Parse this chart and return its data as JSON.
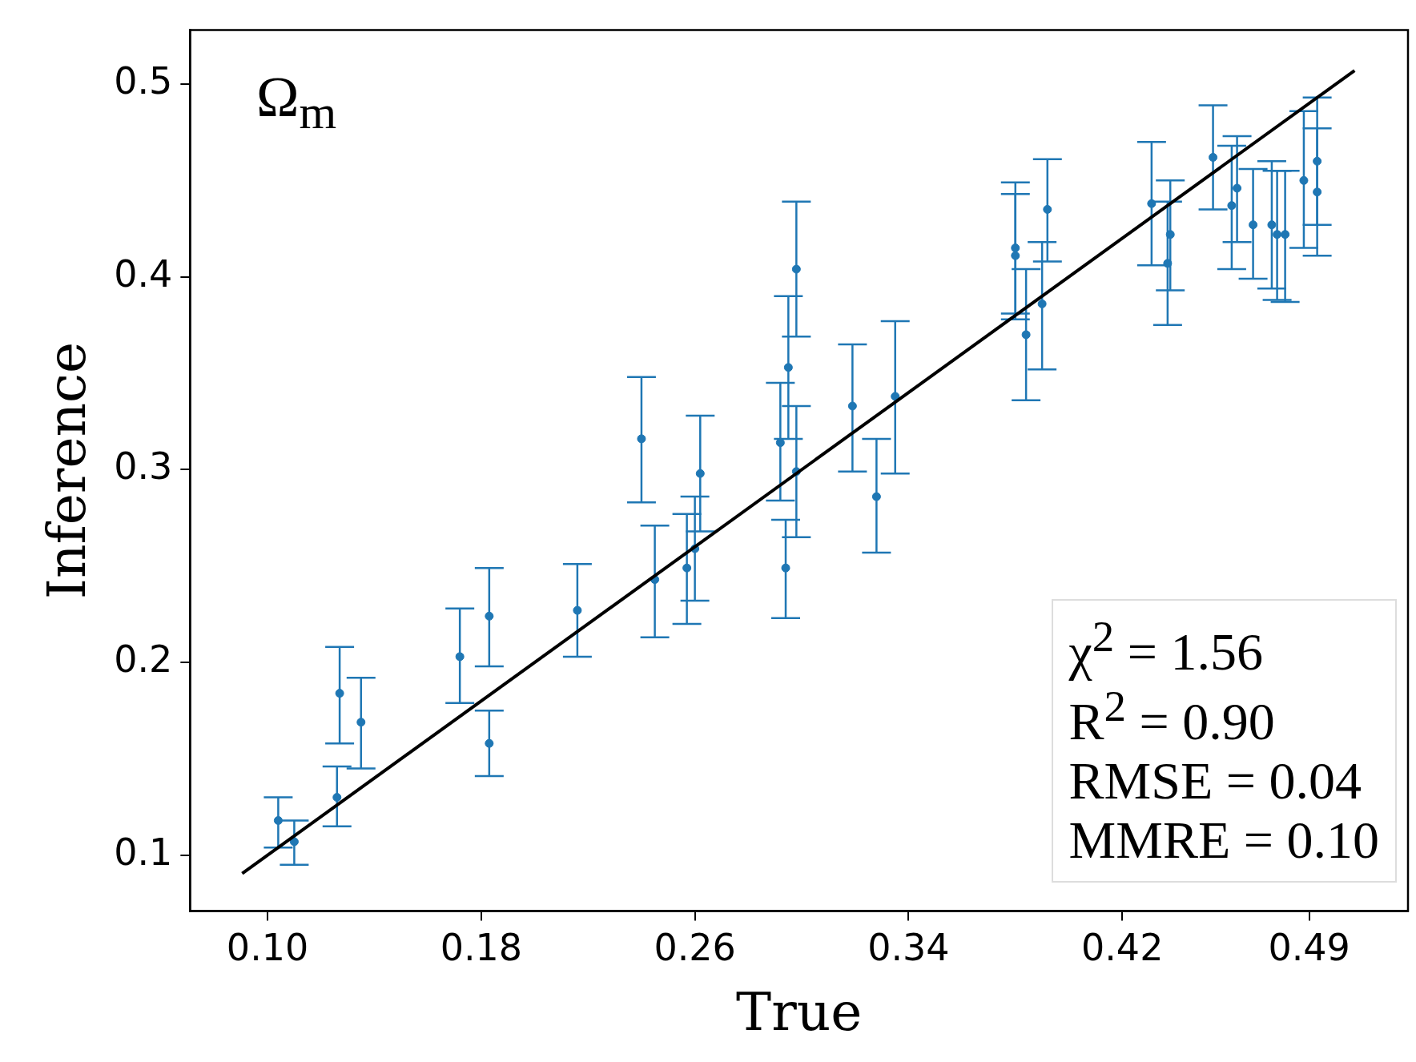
{
  "chart_data": {
    "type": "scatter",
    "xlabel": "True",
    "ylabel": "Inference",
    "annotations": [
      "Ω$_{m}$",
      "χ$^{2}$ = 1.56",
      "R$^{2}$ = 0.90",
      "RMSE = 0.04",
      "MMRE = 0.10"
    ],
    "xlim": [
      0.071,
      0.527
    ],
    "ylim": [
      0.071,
      0.528
    ],
    "xticks": [
      {
        "value": 0.1,
        "label": "0.10"
      },
      0.18,
      0.26,
      0.34,
      0.42,
      0.49
    ],
    "yticks": [
      0.1,
      0.2,
      0.3,
      0.4,
      0.5
    ],
    "grid": false,
    "legend": false,
    "marker": "circle",
    "series": [
      {
        "color": "#1f77b4",
        "x": [
          0.104,
          0.11,
          0.126,
          0.127,
          0.135,
          0.172,
          0.183,
          0.183,
          0.216,
          0.24,
          0.245,
          0.257,
          0.26,
          0.262,
          0.292,
          0.294,
          0.295,
          0.298,
          0.298,
          0.319,
          0.328,
          0.335,
          0.38,
          0.38,
          0.384,
          0.39,
          0.392,
          0.431,
          0.437,
          0.438,
          0.454,
          0.461,
          0.463,
          0.469,
          0.476,
          0.478,
          0.481,
          0.488,
          0.493,
          0.493
        ],
        "values": [
          0.118,
          0.107,
          0.13,
          0.184,
          0.169,
          0.203,
          0.224,
          0.158,
          0.227,
          0.316,
          0.243,
          0.249,
          0.259,
          0.298,
          0.314,
          0.249,
          0.353,
          0.404,
          0.299,
          0.333,
          0.286,
          0.338,
          0.415,
          0.411,
          0.37,
          0.386,
          0.435,
          0.438,
          0.407,
          0.422,
          0.462,
          0.437,
          0.446,
          0.427,
          0.427,
          0.422,
          0.422,
          0.45,
          0.46,
          0.444
        ],
        "errors": [
          [
            0.104,
            0.13
          ],
          [
            0.095,
            0.118
          ],
          [
            0.115,
            0.146
          ],
          [
            0.158,
            0.208
          ],
          [
            0.145,
            0.192
          ],
          [
            0.179,
            0.228
          ],
          [
            0.198,
            0.249
          ],
          [
            0.141,
            0.175
          ],
          [
            0.203,
            0.251
          ],
          [
            0.283,
            0.348
          ],
          [
            0.213,
            0.271
          ],
          [
            0.22,
            0.277
          ],
          [
            0.232,
            0.286
          ],
          [
            0.268,
            0.328
          ],
          [
            0.284,
            0.345
          ],
          [
            0.223,
            0.274
          ],
          [
            0.316,
            0.39
          ],
          [
            0.369,
            0.439
          ],
          [
            0.265,
            0.333
          ],
          [
            0.299,
            0.365
          ],
          [
            0.257,
            0.316
          ],
          [
            0.298,
            0.377
          ],
          [
            0.381,
            0.449
          ],
          [
            0.378,
            0.443
          ],
          [
            0.336,
            0.404
          ],
          [
            0.352,
            0.418
          ],
          [
            0.408,
            0.461
          ],
          [
            0.406,
            0.47
          ],
          [
            0.375,
            0.439
          ],
          [
            0.393,
            0.45
          ],
          [
            0.435,
            0.489
          ],
          [
            0.404,
            0.468
          ],
          [
            0.418,
            0.473
          ],
          [
            0.399,
            0.456
          ],
          [
            0.394,
            0.46
          ],
          [
            0.388,
            0.455
          ],
          [
            0.387,
            0.455
          ],
          [
            0.415,
            0.486
          ],
          [
            0.427,
            0.493
          ],
          [
            0.411,
            0.477
          ]
        ]
      },
      {
        "type": "line",
        "color": "#000000",
        "marker": "none",
        "x": [
          0.0905,
          0.507
        ],
        "values": [
          0.0905,
          0.507
        ]
      }
    ]
  }
}
